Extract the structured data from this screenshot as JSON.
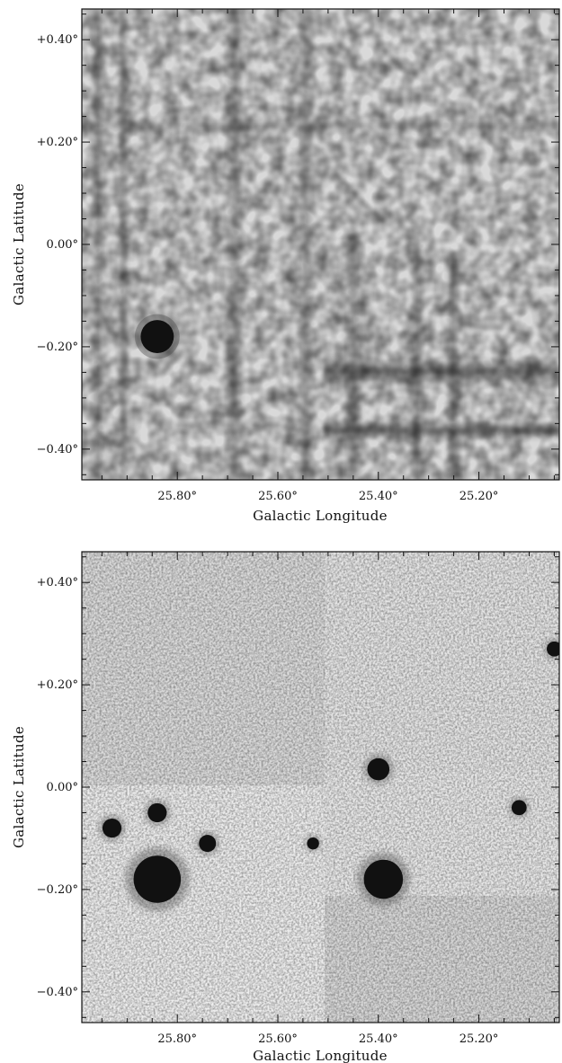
{
  "chart_data": [
    {
      "type": "heatmap",
      "xlabel": "Galactic Longitude",
      "ylabel": "Galactic Latitude",
      "xlim": [
        25.99,
        25.04
      ],
      "ylim": [
        -0.46,
        0.46
      ],
      "x_ticks": [
        {
          "value": 25.8,
          "label": "25.80°"
        },
        {
          "value": 25.6,
          "label": "25.60°"
        },
        {
          "value": 25.4,
          "label": "25.40°"
        },
        {
          "value": 25.2,
          "label": "25.20°"
        }
      ],
      "y_ticks": [
        {
          "value": 0.4,
          "label": "+0.40°"
        },
        {
          "value": 0.2,
          "label": "+0.20°"
        },
        {
          "value": 0.0,
          "label": "0.00°"
        },
        {
          "value": -0.2,
          "label": "−0.20°"
        },
        {
          "value": -0.4,
          "label": "−0.40°"
        }
      ],
      "colormap": "grayscale-inverted",
      "sources": [
        {
          "l": 25.84,
          "b": -0.18,
          "radius_deg": 0.033
        }
      ],
      "features": [
        {
          "kind": "horizontal-stripe",
          "b": -0.26,
          "l_range": [
            25.5,
            25.04
          ]
        }
      ]
    },
    {
      "type": "heatmap",
      "xlabel": "Galactic Longitude",
      "ylabel": "Galactic Latitude",
      "xlim": [
        25.99,
        25.04
      ],
      "ylim": [
        -0.46,
        0.46
      ],
      "x_ticks": [
        {
          "value": 25.8,
          "label": "25.80°"
        },
        {
          "value": 25.6,
          "label": "25.60°"
        },
        {
          "value": 25.4,
          "label": "25.40°"
        },
        {
          "value": 25.2,
          "label": "25.20°"
        }
      ],
      "y_ticks": [
        {
          "value": 0.4,
          "label": "+0.40°"
        },
        {
          "value": 0.2,
          "label": "+0.20°"
        },
        {
          "value": 0.0,
          "label": "0.00°"
        },
        {
          "value": -0.2,
          "label": "−0.20°"
        },
        {
          "value": -0.4,
          "label": "−0.40°"
        }
      ],
      "colormap": "grayscale-inverted",
      "sources": [
        {
          "l": 25.84,
          "b": -0.18,
          "radius_deg": 0.047
        },
        {
          "l": 25.39,
          "b": -0.18,
          "radius_deg": 0.039
        },
        {
          "l": 25.4,
          "b": 0.035,
          "radius_deg": 0.022
        },
        {
          "l": 25.84,
          "b": -0.05,
          "radius_deg": 0.019
        },
        {
          "l": 25.93,
          "b": -0.08,
          "radius_deg": 0.019
        },
        {
          "l": 25.74,
          "b": -0.11,
          "radius_deg": 0.017
        },
        {
          "l": 25.53,
          "b": -0.11,
          "radius_deg": 0.012
        },
        {
          "l": 25.12,
          "b": -0.04,
          "radius_deg": 0.015
        },
        {
          "l": 25.05,
          "b": 0.27,
          "radius_deg": 0.015
        }
      ]
    }
  ]
}
